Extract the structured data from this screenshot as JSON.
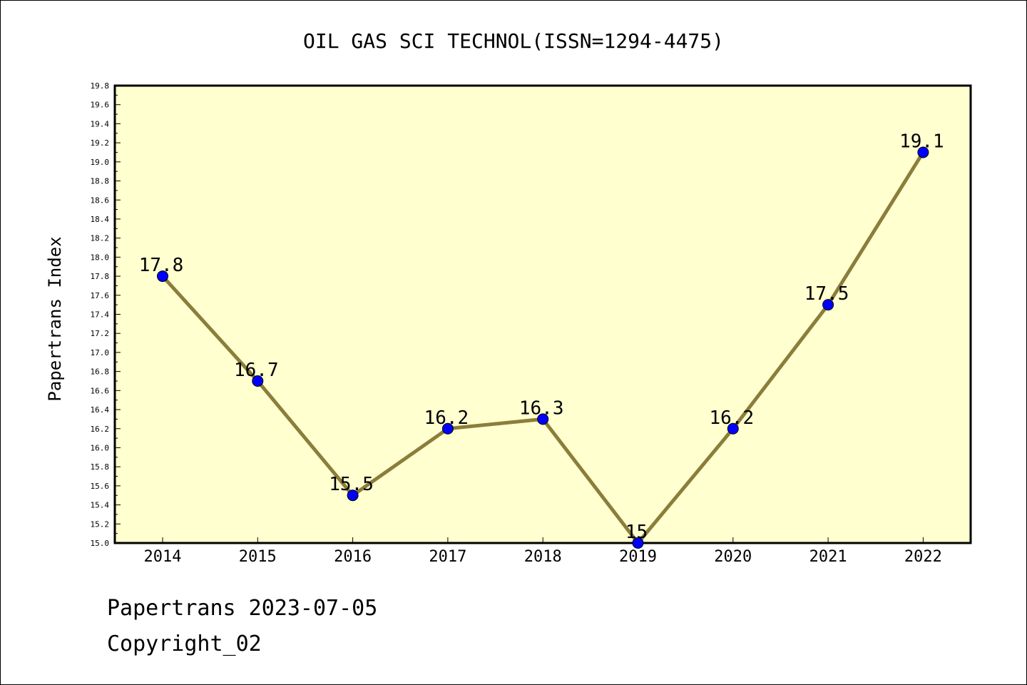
{
  "chart_data": {
    "type": "line",
    "title": "OIL GAS SCI TECHNOL(ISSN=1294-4475)",
    "xlabel": "",
    "ylabel": "Papertrans Index",
    "categories": [
      "2014",
      "2015",
      "2016",
      "2017",
      "2018",
      "2019",
      "2020",
      "2021",
      "2022"
    ],
    "series": [
      {
        "values": [
          17.8,
          16.7,
          15.5,
          16.2,
          16.3,
          15.0,
          16.2,
          17.5,
          19.1
        ],
        "labels": [
          "17.8",
          "16.7",
          "15.5",
          "16.2",
          "16.3",
          "15",
          "16.2",
          "17.5",
          "19.1"
        ]
      }
    ],
    "ylim": [
      15.0,
      19.8
    ],
    "yticks": [
      "15.0",
      "15.2",
      "15.4",
      "15.6",
      "15.8",
      "16.0",
      "16.2",
      "16.4",
      "16.6",
      "16.8",
      "17.0",
      "17.2",
      "17.4",
      "17.6",
      "17.8",
      "18.0",
      "18.2",
      "18.4",
      "18.6",
      "18.8",
      "19.0",
      "19.2",
      "19.4",
      "19.6",
      "19.8"
    ],
    "grid": false,
    "legend": "none",
    "colors": {
      "plot_bg": "#ffffd0",
      "line": "#8b7d3a",
      "marker": "#0000ff"
    }
  },
  "footer": {
    "line1": "Papertrans 2023-07-05",
    "line2": "Copyright_02"
  }
}
